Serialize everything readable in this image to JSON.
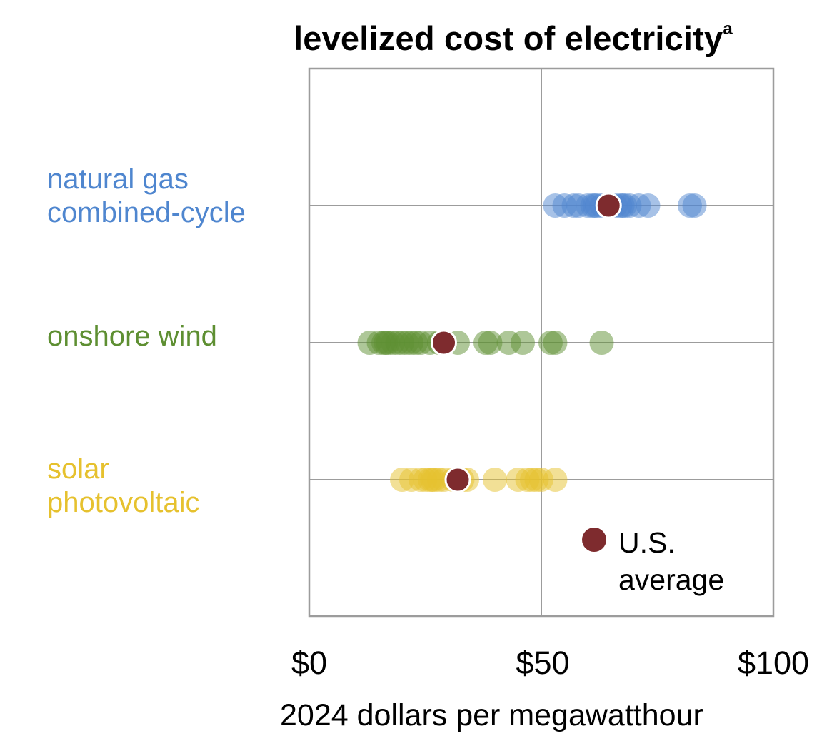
{
  "chart_data": {
    "type": "scatter",
    "title": "levelized cost of electricity",
    "title_superscript": "a",
    "xlabel": "2024 dollars per megawatthour",
    "xlim": [
      0,
      100
    ],
    "x_ticks": [
      {
        "value": 0,
        "label": "$0"
      },
      {
        "value": 50,
        "label": "$50"
      },
      {
        "value": 100,
        "label": "$100"
      }
    ],
    "grid": true,
    "categories": [
      {
        "name_lines": [
          "natural gas",
          "combined-cycle"
        ],
        "color": "#4F86CF",
        "values": [
          53,
          55,
          57,
          58,
          60,
          61,
          61.5,
          62,
          63,
          64,
          65,
          66,
          67,
          67.5,
          68,
          69,
          71,
          73,
          82,
          83
        ],
        "us_average": 64.5
      },
      {
        "name_lines": [
          "onshore wind"
        ],
        "color": "#5E8F32",
        "values": [
          13,
          15,
          16,
          16.5,
          17,
          18,
          19,
          20,
          21,
          22,
          23,
          24,
          26,
          28,
          32,
          38,
          39,
          43,
          46,
          52,
          53,
          63
        ],
        "us_average": 29
      },
      {
        "name_lines": [
          "solar",
          "photovoltaic"
        ],
        "color": "#E6C12E",
        "values": [
          20,
          22,
          24,
          25,
          26,
          26.5,
          27,
          28,
          29,
          31,
          33,
          34,
          40,
          45,
          47,
          48,
          49,
          50,
          53
        ],
        "us_average": 32
      }
    ],
    "average_color": "#7E2B2E",
    "legend": {
      "label_lines": [
        "U.S.",
        "average"
      ],
      "placement": "bottom-right"
    }
  }
}
